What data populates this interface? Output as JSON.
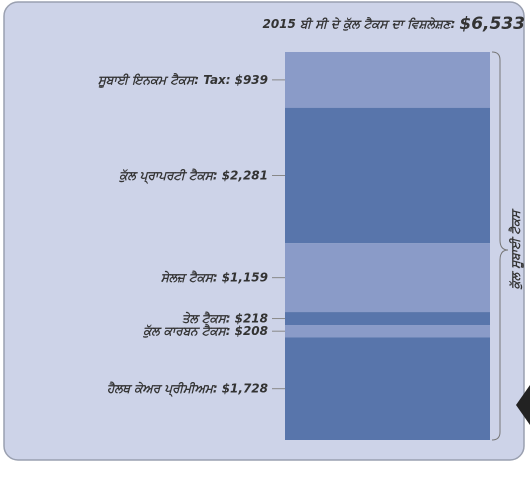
{
  "chart_data": {
    "type": "bar",
    "stacked": true,
    "title": "2015 ਬੀ ਸੀ ਦੇ ਕੁੱਲ ਟੈਕਸ ਦਾ ਵਿਸ਼ਲੇਸ਼ਣ:",
    "total": {
      "value": 6533,
      "label": "$6,533"
    },
    "bracket_label": "ਕੁੱਲ ਸੂਬਾਈ ਟੈਕਸ",
    "categories": [
      "ਸੂਬਾਈ ਇਨਕਮ ਟੈਕਸ: Tax:",
      "ਕੁੱਲ ਪ੍ਰਾਪਰਟੀ ਟੈਕਸ:",
      "ਸੇਲਜ਼ ਟੈਕਸ:",
      "ਤੇਲ ਟੈਕਸ:",
      "ਕੁੱਲ ਕਾਰਬਨ ਟੈਕਸ:",
      "ਹੈਲਥ ਕੇਅਰ ਪ੍ਰੀਮੀਅਮ:"
    ],
    "values": [
      939,
      2281,
      1159,
      218,
      208,
      1728
    ],
    "value_labels": [
      "$939",
      "$2,281",
      "$1,159",
      "$218",
      "$208",
      "$1,728"
    ],
    "colors": [
      "#8a9bc8",
      "#5875ab",
      "#8a9bc8",
      "#5875ab",
      "#8a9bc8",
      "#5875ab"
    ]
  }
}
